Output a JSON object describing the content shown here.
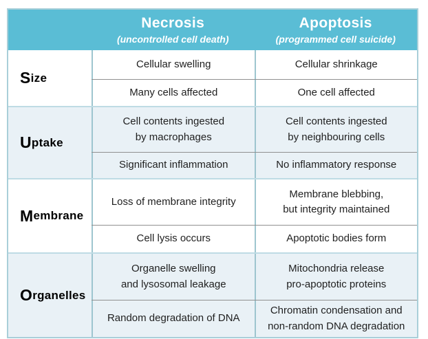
{
  "table": {
    "header": {
      "necrosis_title": "Necrosis",
      "necrosis_subtitle": "(uncontrolled cell death)",
      "apoptosis_title": "Apoptosis",
      "apoptosis_subtitle": "(programmed cell suicide)"
    },
    "groups": [
      {
        "label": "Size",
        "shaded": false,
        "rows": [
          {
            "necrosis": "Cellular swelling",
            "apoptosis": "Cellular shrinkage"
          },
          {
            "necrosis": "Many cells affected",
            "apoptosis": "One cell affected"
          }
        ]
      },
      {
        "label": "Uptake",
        "shaded": true,
        "rows": [
          {
            "necrosis": "Cell contents ingested\nby macrophages",
            "apoptosis": "Cell contents ingested\nby neighbouring cells"
          },
          {
            "necrosis": "Significant inflammation",
            "apoptosis": "No inflammatory response"
          }
        ]
      },
      {
        "label": "Membrane",
        "shaded": false,
        "rows": [
          {
            "necrosis": "Loss of membrane integrity",
            "apoptosis": "Membrane blebbing,\nbut integrity maintained"
          },
          {
            "necrosis": "Cell lysis occurs",
            "apoptosis": "Apoptotic bodies form"
          }
        ]
      },
      {
        "label": "Organelles",
        "shaded": true,
        "rows": [
          {
            "necrosis": "Organelle swelling\nand lysosomal leakage",
            "apoptosis": "Mitochondria release\npro-apoptotic proteins"
          },
          {
            "necrosis": "Random degradation of DNA",
            "apoptosis": "Chromatin condensation and\nnon-random DNA degradation"
          }
        ]
      }
    ]
  },
  "colors": {
    "header_teal": "#5abdd5",
    "shaded_row": "#e9f1f6",
    "grid_gray": "#8f8f8f",
    "grid_teal": "#9dc5cf",
    "group_divider": "#bedbe4",
    "outer_border": "#a9cfd9",
    "body_text": "#1f1f1f",
    "header_text": "#ffffff"
  },
  "chart_data": {
    "type": "table",
    "title": "Necrosis vs Apoptosis comparison",
    "columns": [
      "",
      "Necrosis (uncontrolled cell death)",
      "Apoptosis (programmed cell suicide)"
    ],
    "rows": [
      [
        "Size",
        "Cellular swelling",
        "Cellular shrinkage"
      ],
      [
        "Size",
        "Many cells affected",
        "One cell affected"
      ],
      [
        "Uptake",
        "Cell contents ingested by macrophages",
        "Cell contents ingested by neighbouring cells"
      ],
      [
        "Uptake",
        "Significant inflammation",
        "No inflammatory response"
      ],
      [
        "Membrane",
        "Loss of membrane integrity",
        "Membrane blebbing, but integrity maintained"
      ],
      [
        "Membrane",
        "Cell lysis occurs",
        "Apoptotic bodies form"
      ],
      [
        "Organelles",
        "Organelle swelling and lysosomal leakage",
        "Mitochondria release pro-apoptotic proteins"
      ],
      [
        "Organelles",
        "Random degradation of DNA",
        "Chromatin condensation and non-random DNA degradation"
      ]
    ]
  }
}
